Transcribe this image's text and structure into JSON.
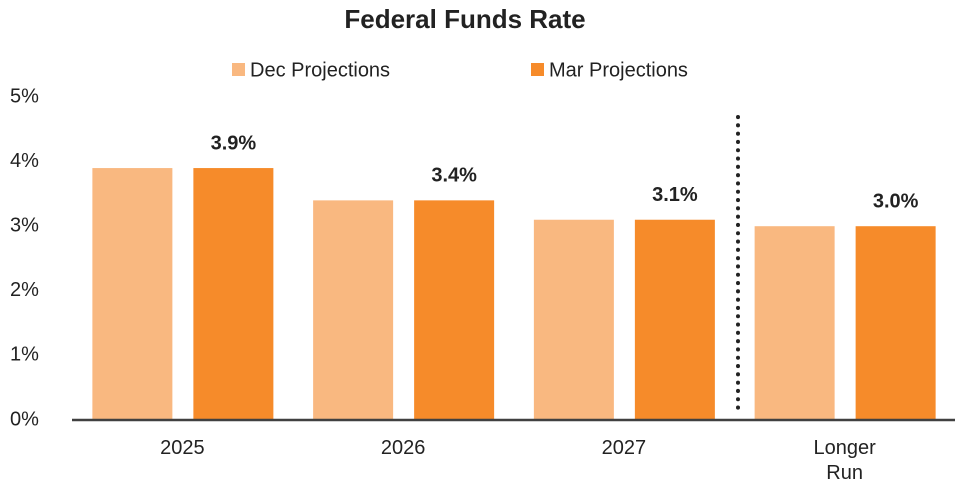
{
  "chart_data": {
    "type": "bar",
    "title": "Federal Funds Rate",
    "categories": [
      "2025",
      "2026",
      "2027",
      "Longer Run"
    ],
    "series": [
      {
        "name": "Dec Projections",
        "color": "#f9b880",
        "values": [
          3.9,
          3.4,
          3.1,
          3.0
        ]
      },
      {
        "name": "Mar Projections",
        "color": "#f68b2a",
        "values": [
          3.9,
          3.4,
          3.1,
          3.0
        ],
        "value_labels": [
          "3.9%",
          "3.4%",
          "3.1%",
          "3.0%"
        ]
      }
    ],
    "ylim": [
      0,
      5
    ],
    "yticks": [
      {
        "value": 0,
        "label": "0%"
      },
      {
        "value": 1,
        "label": "1%"
      },
      {
        "value": 2,
        "label": "2%"
      },
      {
        "value": 3,
        "label": "3%"
      },
      {
        "value": 4,
        "label": "4%"
      },
      {
        "value": 5,
        "label": "5%"
      }
    ],
    "grid": false,
    "legend": "top"
  }
}
